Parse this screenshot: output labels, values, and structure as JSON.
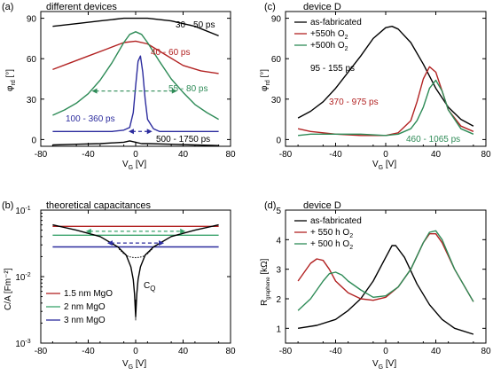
{
  "colors": {
    "black": "#000000",
    "red": "#b22222",
    "green": "#2e8b57",
    "blue": "#2c2c9e",
    "lightgreen": "#3aa36b"
  },
  "chart_data": [
    {
      "panel": "(a)",
      "type": "line",
      "title": "different devices",
      "xlabel": "V_G [V]",
      "ylabel": "φ_rd [°]",
      "xlim": [
        -80,
        80
      ],
      "ylim": [
        -5,
        95
      ],
      "xticks": [
        -80,
        -40,
        0,
        40,
        80
      ],
      "yticks": [
        0,
        30,
        60,
        90
      ],
      "series": [
        {
          "name": "30 - 50 ps",
          "color": "black",
          "x": [
            -70,
            -50,
            -30,
            -10,
            0,
            10,
            30,
            50,
            70
          ],
          "y": [
            84,
            86,
            88,
            90,
            90,
            90,
            88,
            84,
            77
          ]
        },
        {
          "name": "40 - 60 ps",
          "color": "red",
          "x": [
            -70,
            -55,
            -40,
            -25,
            -10,
            0,
            10,
            25,
            40,
            55,
            70
          ],
          "y": [
            52,
            57,
            62,
            67,
            72,
            73,
            71,
            63,
            55,
            51,
            49
          ]
        },
        {
          "name": "55 - 80 ps",
          "color": "green",
          "x": [
            -70,
            -60,
            -50,
            -40,
            -30,
            -20,
            -10,
            -5,
            0,
            5,
            10,
            20,
            30,
            40,
            50,
            60,
            70
          ],
          "y": [
            18,
            22,
            27,
            34,
            44,
            57,
            72,
            78,
            80,
            78,
            72,
            58,
            45,
            35,
            26,
            20,
            15
          ]
        },
        {
          "name": "100 - 360 ps",
          "color": "blue",
          "x": [
            -70,
            -40,
            -20,
            -10,
            -5,
            -2,
            0,
            2,
            4,
            6,
            8,
            10,
            15,
            20,
            40,
            70
          ],
          "y": [
            6,
            6,
            6,
            7,
            9,
            20,
            40,
            58,
            62,
            50,
            30,
            15,
            8,
            6,
            6,
            6
          ]
        },
        {
          "name": "500 - 1750 ps",
          "color": "black",
          "x": [
            -70,
            -50,
            -30,
            -10,
            -5,
            0,
            5,
            10,
            30,
            50,
            70
          ],
          "y": [
            -4,
            -3.5,
            -3,
            -2,
            -1,
            -2,
            -3,
            -3,
            -3.5,
            -4,
            -4.5
          ]
        }
      ],
      "arrows": [
        {
          "color": "green",
          "x1": -37,
          "x2": 35,
          "y": 36
        },
        {
          "color": "blue",
          "x1": -6,
          "x2": 14,
          "y": 6
        }
      ]
    },
    {
      "panel": "(b)",
      "type": "line",
      "title": "theoretical capacitances",
      "xlabel": "V_G [V]",
      "ylabel": "C/A [Fm⁻²]",
      "xlim": [
        -80,
        80
      ],
      "ylim": [
        0.001,
        0.1
      ],
      "yscale": "log",
      "xticks": [
        -80,
        -40,
        0,
        40,
        80
      ],
      "ytick_labels": [
        "10⁻³",
        "10⁻²",
        "10⁻¹"
      ],
      "annotation": "C_Q",
      "legend": [
        "1.5 nm MgO",
        "2 nm MgO",
        "3 nm MgO"
      ],
      "series": [
        {
          "name": "1.5 nm MgO",
          "color": "red",
          "x": [
            -70,
            70
          ],
          "y": [
            0.057,
            0.057
          ]
        },
        {
          "name": "2 nm MgO",
          "color": "lightgreen",
          "x": [
            -70,
            70
          ],
          "y": [
            0.042,
            0.042
          ]
        },
        {
          "name": "3 nm MgO",
          "color": "blue",
          "x": [
            -70,
            70
          ],
          "y": [
            0.028,
            0.028
          ]
        },
        {
          "name": "C_Q",
          "color": "black",
          "x": [
            -70,
            -50,
            -30,
            -15,
            -8,
            -4,
            -2,
            -1,
            0,
            1,
            2,
            4,
            8,
            15,
            30,
            50,
            70
          ],
          "y": [
            0.06,
            0.05,
            0.04,
            0.028,
            0.021,
            0.014,
            0.009,
            0.0055,
            0.0025,
            0.0055,
            0.009,
            0.014,
            0.021,
            0.028,
            0.04,
            0.05,
            0.06
          ]
        },
        {
          "name": "dotted",
          "color": "black",
          "dashed": true,
          "x": [
            -14,
            -10,
            -6,
            -3,
            0,
            3,
            6,
            10,
            14
          ],
          "y": [
            0.026,
            0.022,
            0.02,
            0.0195,
            0.0193,
            0.0195,
            0.02,
            0.022,
            0.026
          ]
        }
      ],
      "arrows": [
        {
          "color": "lightgreen",
          "x1": -42,
          "x2": 42,
          "y": 0.048
        },
        {
          "color": "blue",
          "x1": -24,
          "x2": 24,
          "y": 0.032
        }
      ]
    },
    {
      "panel": "(c)",
      "type": "line",
      "title": "device D",
      "xlabel": "V_G [V]",
      "ylabel": "φ_rd [°]",
      "xlim": [
        -80,
        80
      ],
      "ylim": [
        -5,
        95
      ],
      "xticks": [
        -80,
        -40,
        0,
        40,
        80
      ],
      "yticks": [
        0,
        30,
        60,
        90
      ],
      "legend": [
        "as-fabricated",
        "+550h O₂",
        "+500h O₂"
      ],
      "series": [
        {
          "name": "as-fabricated",
          "label": "95 - 155 ps",
          "color": "black",
          "x": [
            -70,
            -60,
            -50,
            -40,
            -30,
            -20,
            -10,
            0,
            5,
            10,
            20,
            30,
            40,
            50,
            60,
            70
          ],
          "y": [
            16,
            21,
            28,
            38,
            50,
            62,
            75,
            83,
            84,
            82,
            72,
            56,
            38,
            24,
            15,
            10
          ]
        },
        {
          "name": "+550h O₂",
          "label": "370 - 975 ps",
          "color": "red",
          "x": [
            -70,
            -60,
            -40,
            -20,
            0,
            10,
            20,
            25,
            30,
            35,
            40,
            45,
            50,
            60,
            70
          ],
          "y": [
            8,
            6,
            4,
            3,
            3,
            5,
            14,
            28,
            45,
            54,
            50,
            36,
            22,
            10,
            6
          ]
        },
        {
          "name": "+500h O₂",
          "label": "460 - 1065 ps",
          "color": "green",
          "x": [
            -70,
            -60,
            -40,
            -20,
            0,
            10,
            20,
            25,
            30,
            35,
            40,
            45,
            50,
            60,
            70
          ],
          "y": [
            3,
            4,
            4,
            4,
            3,
            4,
            8,
            14,
            24,
            38,
            44,
            36,
            22,
            8,
            4
          ]
        }
      ]
    },
    {
      "panel": "(d)",
      "type": "line",
      "title": "device D",
      "xlabel": "V_G [V]",
      "ylabel": "R_graphene [kΩ]",
      "xlim": [
        -80,
        80
      ],
      "ylim": [
        0.5,
        5
      ],
      "xticks": [
        -80,
        -40,
        0,
        40,
        80
      ],
      "yticks": [
        1,
        2,
        3,
        4,
        5
      ],
      "legend": [
        "as-fabricated",
        "+ 550 h O₂",
        "+ 500 h O₂"
      ],
      "series": [
        {
          "name": "as-fabricated",
          "color": "black",
          "x": [
            -70,
            -55,
            -40,
            -30,
            -20,
            -10,
            0,
            5,
            8,
            15,
            25,
            35,
            45,
            55,
            70
          ],
          "y": [
            1.0,
            1.1,
            1.3,
            1.6,
            2.0,
            2.6,
            3.4,
            3.8,
            3.8,
            3.4,
            2.5,
            1.8,
            1.3,
            1.0,
            0.8
          ]
        },
        {
          "name": "+ 550 h O₂",
          "color": "red",
          "x": [
            -70,
            -65,
            -60,
            -55,
            -50,
            -45,
            -40,
            -30,
            -20,
            -10,
            0,
            10,
            20,
            30,
            35,
            40,
            45,
            55,
            70
          ],
          "y": [
            2.6,
            2.9,
            3.2,
            3.35,
            3.3,
            3.0,
            2.6,
            2.2,
            2.0,
            1.95,
            2.05,
            2.4,
            3.0,
            3.9,
            4.2,
            4.2,
            3.9,
            3.0,
            1.9
          ]
        },
        {
          "name": "+ 500 h O₂",
          "color": "green",
          "x": [
            -70,
            -60,
            -50,
            -45,
            -40,
            -35,
            -30,
            -20,
            -10,
            0,
            10,
            20,
            30,
            35,
            40,
            45,
            55,
            70
          ],
          "y": [
            1.6,
            2.0,
            2.6,
            2.85,
            2.9,
            2.8,
            2.6,
            2.3,
            2.05,
            2.1,
            2.4,
            3.0,
            3.9,
            4.25,
            4.3,
            4.0,
            3.0,
            1.9
          ]
        }
      ]
    }
  ],
  "labels": {
    "a_letter": "(a)",
    "a_title": "different devices",
    "b_letter": "(b)",
    "b_title": "theoretical capacitances",
    "c_letter": "(c)",
    "c_title": "device D",
    "d_letter": "(d)",
    "d_title": "device D",
    "a_s1": "30 - 50 ps",
    "a_s2": "40 - 60 ps",
    "a_s3": "55 - 80 ps",
    "a_s4": "100 - 360 ps",
    "a_s5": "500 - 1750 ps",
    "c_s1": "95 - 155 ps",
    "c_s2": "370 - 975 ps",
    "c_s3": "460 - 1065 ps",
    "c_leg1": "as-fabricated",
    "c_leg2": "+550h O",
    "c_leg3": "+500h O",
    "d_leg1": "as-fabricated",
    "d_leg2": "+ 550 h O",
    "d_leg3": "+ 500 h O",
    "b_leg1": "1.5 nm MgO",
    "b_leg2": "2 nm MgO",
    "b_leg3": "3 nm MgO",
    "b_cq": "C",
    "b_cq_sub": "Q",
    "xlabel_main": "V",
    "xlabel_sub": "G",
    "xlabel_unit": " [V]",
    "phi_main": "φ",
    "phi_sub": "rd",
    "phi_unit": " [°]",
    "c_ylabel": "C/A [Fm⁻²]",
    "r_main": "R",
    "r_sub": "graphene",
    "r_unit": " [kΩ]",
    "sub2": "2",
    "log_base": "10",
    "log_m3": "-3",
    "log_m2": "-2",
    "log_m1": "-1"
  }
}
